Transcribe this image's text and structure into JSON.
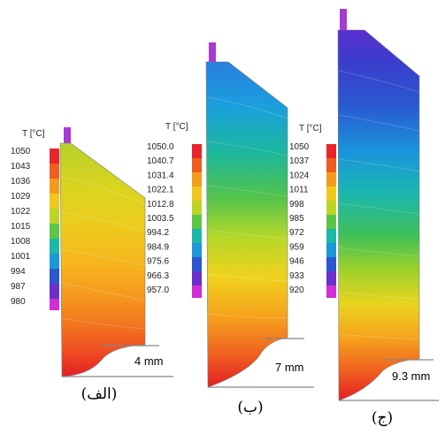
{
  "panels": [
    {
      "id": "a",
      "caption": "(الف)",
      "legend_header": "T [°C]",
      "legend_values": [
        "1050",
        "1043",
        "1036",
        "1029",
        "1022",
        "1015",
        "1008",
        "1001",
        "994",
        "987",
        "980"
      ],
      "dimension": "4 mm"
    },
    {
      "id": "b",
      "caption": "(ب)",
      "legend_header": "T [°C]",
      "legend_values": [
        "1050.0",
        "1040.7",
        "1031.4",
        "1022.1",
        "1012.8",
        "1003.5",
        "994.2",
        "984.9",
        "975.6",
        "966.3",
        "957.0"
      ],
      "dimension": "7 mm"
    },
    {
      "id": "c",
      "caption": "(ج)",
      "legend_header": "T [°C]",
      "legend_values": [
        "1050",
        "1037",
        "1024",
        "1011",
        "998",
        "985",
        "972",
        "959",
        "946",
        "933",
        "920"
      ],
      "dimension": "9.3 mm"
    }
  ],
  "colors": {
    "scale": [
      "#e8262a",
      "#ee5b22",
      "#f39a1e",
      "#f6c21c",
      "#dfd81e",
      "#9fd22a",
      "#49c24d",
      "#1bb7a8",
      "#1c97d8",
      "#2b57cf",
      "#5a36c6",
      "#c42ad6"
    ]
  }
}
